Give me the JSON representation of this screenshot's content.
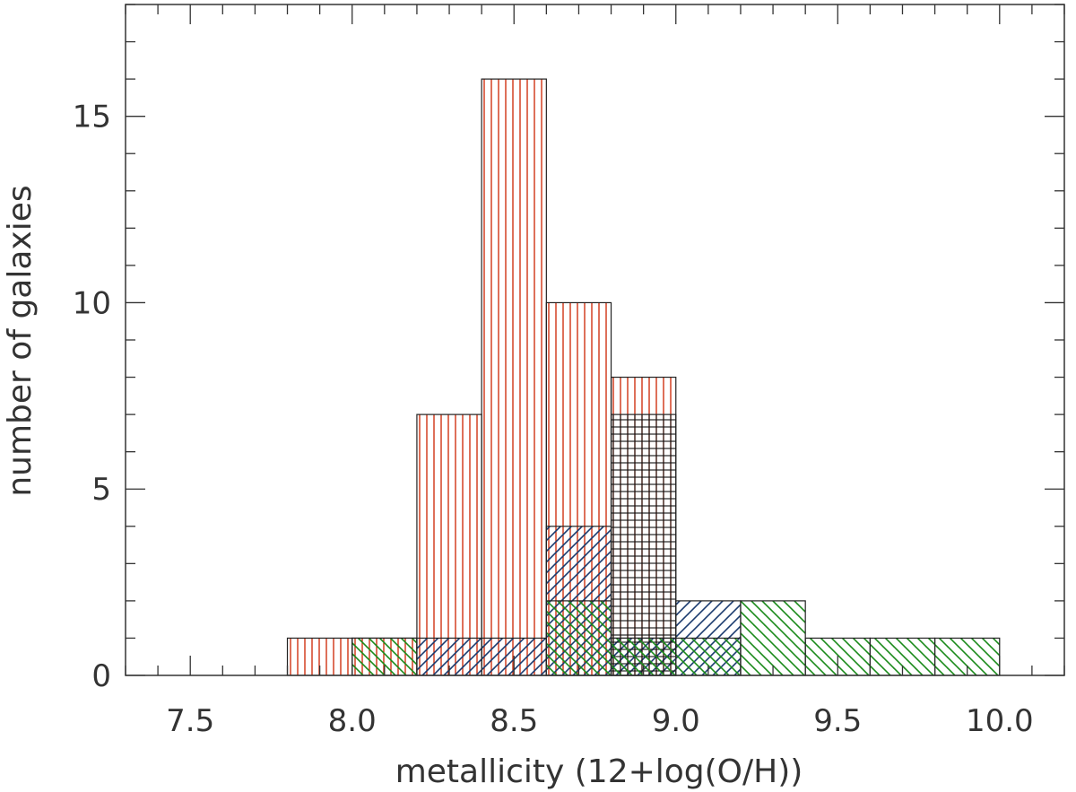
{
  "chart_data": {
    "type": "bar",
    "title": "",
    "xlabel": "metallicity (12+log(O/H))",
    "ylabel": "number of galaxies",
    "xlim": [
      7.3,
      10.2
    ],
    "ylim": [
      0,
      18
    ],
    "x_ticks": [
      7.5,
      8.0,
      8.5,
      9.0,
      9.5,
      10.0
    ],
    "x_tick_labels": [
      "7.5",
      "8.0",
      "8.5",
      "9.0",
      "9.5",
      "10.0"
    ],
    "y_ticks": [
      0,
      5,
      10,
      15
    ],
    "y_tick_labels": [
      "0",
      "5",
      "10",
      "15"
    ],
    "bin_width": 0.2,
    "grid": false,
    "series": [
      {
        "color": "#cc2200",
        "hatch": "vertical",
        "bins": [
          {
            "x0": 7.8,
            "x1": 8.0,
            "count": 1
          },
          {
            "x0": 8.0,
            "x1": 8.2,
            "count": 1
          },
          {
            "x0": 8.2,
            "x1": 8.4,
            "count": 7
          },
          {
            "x0": 8.4,
            "x1": 8.6,
            "count": 16
          },
          {
            "x0": 8.6,
            "x1": 8.8,
            "count": 10
          },
          {
            "x0": 8.8,
            "x1": 9.0,
            "count": 8
          }
        ]
      },
      {
        "color": "#1a3a6e",
        "hatch": "diagonal-up",
        "bins": [
          {
            "x0": 8.2,
            "x1": 8.4,
            "count": 1
          },
          {
            "x0": 8.4,
            "x1": 8.6,
            "count": 1
          },
          {
            "x0": 8.6,
            "x1": 8.8,
            "count": 4
          },
          {
            "x0": 8.8,
            "x1": 9.0,
            "count": 1
          },
          {
            "x0": 9.0,
            "x1": 9.2,
            "count": 2
          }
        ]
      },
      {
        "color": "#111111",
        "hatch": "grid",
        "bins": [
          {
            "x0": 8.8,
            "x1": 9.0,
            "count": 7
          }
        ]
      },
      {
        "color": "#1a8a1a",
        "hatch": "diagonal-down",
        "bins": [
          {
            "x0": 8.0,
            "x1": 8.2,
            "count": 1
          },
          {
            "x0": 8.6,
            "x1": 8.8,
            "count": 2
          },
          {
            "x0": 8.8,
            "x1": 9.0,
            "count": 1
          },
          {
            "x0": 9.0,
            "x1": 9.2,
            "count": 1
          },
          {
            "x0": 9.2,
            "x1": 9.4,
            "count": 2
          },
          {
            "x0": 9.4,
            "x1": 9.6,
            "count": 1
          },
          {
            "x0": 9.6,
            "x1": 9.8,
            "count": 1
          },
          {
            "x0": 9.8,
            "x1": 10.0,
            "count": 1
          }
        ]
      }
    ]
  }
}
